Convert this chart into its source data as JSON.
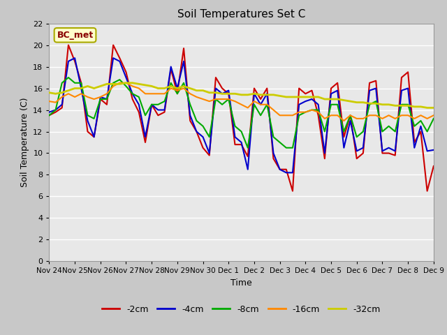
{
  "title": "Soil Temperatures Set C",
  "xlabel": "Time",
  "ylabel": "Soil Temperature (C)",
  "annotation": "BC_met",
  "ylim": [
    0,
    22
  ],
  "yticks": [
    0,
    2,
    4,
    6,
    8,
    10,
    12,
    14,
    16,
    18,
    20,
    22
  ],
  "xtick_labels": [
    "Nov 24",
    "Nov 25",
    "Nov 26",
    "Nov 27",
    "Nov 28",
    "Nov 29",
    "Nov 30",
    "Dec 1",
    "Dec 2",
    "Dec 3",
    "Dec 4",
    "Dec 5",
    "Dec 6",
    "Dec 7",
    "Dec 8",
    "Dec 9"
  ],
  "legend_labels": [
    "-2cm",
    "-4cm",
    "-8cm",
    "-16cm",
    "-32cm"
  ],
  "legend_colors": [
    "#cc0000",
    "#0000cc",
    "#00aa00",
    "#ff8800",
    "#cccc00"
  ],
  "line_widths": [
    1.5,
    1.5,
    1.5,
    1.5,
    2.0
  ],
  "fig_bg": "#c8c8c8",
  "plot_bg": "#e8e8e8",
  "grid_color": "#ffffff",
  "series": {
    "d2cm": [
      13.5,
      13.8,
      14.2,
      20.0,
      18.5,
      16.5,
      12.0,
      11.5,
      15.0,
      14.5,
      20.0,
      18.8,
      17.5,
      15.0,
      13.8,
      11.0,
      14.5,
      13.5,
      13.8,
      17.8,
      15.5,
      19.7,
      13.0,
      12.0,
      10.5,
      9.8,
      17.0,
      16.0,
      15.5,
      10.8,
      10.8,
      9.7,
      16.0,
      15.0,
      16.0,
      9.5,
      8.5,
      8.5,
      6.5,
      16.0,
      15.5,
      15.8,
      13.5,
      9.5,
      16.0,
      16.5,
      11.5,
      13.5,
      9.5,
      10.0,
      16.5,
      16.7,
      10.0,
      10.0,
      9.8,
      17.0,
      17.5,
      11.0,
      12.0,
      6.5,
      8.8
    ],
    "d4cm": [
      13.8,
      14.0,
      14.5,
      18.5,
      18.8,
      16.0,
      13.0,
      11.5,
      15.2,
      15.0,
      18.8,
      18.5,
      17.0,
      15.5,
      14.5,
      11.5,
      14.5,
      14.0,
      14.0,
      18.0,
      16.0,
      18.5,
      13.5,
      12.0,
      11.5,
      10.0,
      16.0,
      15.5,
      15.8,
      11.5,
      11.0,
      8.5,
      15.5,
      14.5,
      15.5,
      10.0,
      8.5,
      8.2,
      8.2,
      14.5,
      14.8,
      15.0,
      14.5,
      10.0,
      15.5,
      15.8,
      10.5,
      13.0,
      10.2,
      10.5,
      15.8,
      16.0,
      10.2,
      10.5,
      10.2,
      15.8,
      16.0,
      10.5,
      12.5,
      10.2,
      10.3
    ],
    "d8cm": [
      13.5,
      14.0,
      16.5,
      17.0,
      16.5,
      16.5,
      13.5,
      13.2,
      15.0,
      15.0,
      16.5,
      16.8,
      16.2,
      15.5,
      15.2,
      13.5,
      14.5,
      14.5,
      14.8,
      16.5,
      15.5,
      16.5,
      14.5,
      13.0,
      12.5,
      11.5,
      15.0,
      14.5,
      15.0,
      12.5,
      12.0,
      10.5,
      14.5,
      13.5,
      14.5,
      11.5,
      11.0,
      10.5,
      10.5,
      13.5,
      13.8,
      14.0,
      14.0,
      12.0,
      14.5,
      14.5,
      12.0,
      13.5,
      11.5,
      12.0,
      14.5,
      14.8,
      12.0,
      12.5,
      12.0,
      14.5,
      14.5,
      12.5,
      13.0,
      12.0,
      13.2
    ],
    "d16cm": [
      14.8,
      14.7,
      15.2,
      15.5,
      15.2,
      15.5,
      15.2,
      15.0,
      15.2,
      15.5,
      16.2,
      16.5,
      16.5,
      16.2,
      16.0,
      15.5,
      15.5,
      15.5,
      15.5,
      16.0,
      15.8,
      16.0,
      15.5,
      15.2,
      15.0,
      14.8,
      15.0,
      15.0,
      15.0,
      14.8,
      14.5,
      14.2,
      14.8,
      14.5,
      14.5,
      14.0,
      13.5,
      13.5,
      13.5,
      13.8,
      13.8,
      14.0,
      13.8,
      13.2,
      13.5,
      13.5,
      13.0,
      13.5,
      13.2,
      13.2,
      13.5,
      13.5,
      13.2,
      13.5,
      13.2,
      13.5,
      13.5,
      13.2,
      13.5,
      13.2,
      13.5
    ],
    "d32cm": [
      15.6,
      15.5,
      15.6,
      15.8,
      16.0,
      16.0,
      16.2,
      16.0,
      16.2,
      16.4,
      16.4,
      16.4,
      16.5,
      16.5,
      16.4,
      16.3,
      16.2,
      16.0,
      16.0,
      16.2,
      16.0,
      16.2,
      16.0,
      15.8,
      15.8,
      15.6,
      15.6,
      15.5,
      15.5,
      15.5,
      15.4,
      15.4,
      15.5,
      15.4,
      15.4,
      15.4,
      15.3,
      15.2,
      15.2,
      15.2,
      15.2,
      15.2,
      15.2,
      15.0,
      15.0,
      15.0,
      14.9,
      14.8,
      14.7,
      14.7,
      14.6,
      14.6,
      14.5,
      14.5,
      14.4,
      14.4,
      14.4,
      14.3,
      14.3,
      14.2,
      14.2
    ]
  }
}
